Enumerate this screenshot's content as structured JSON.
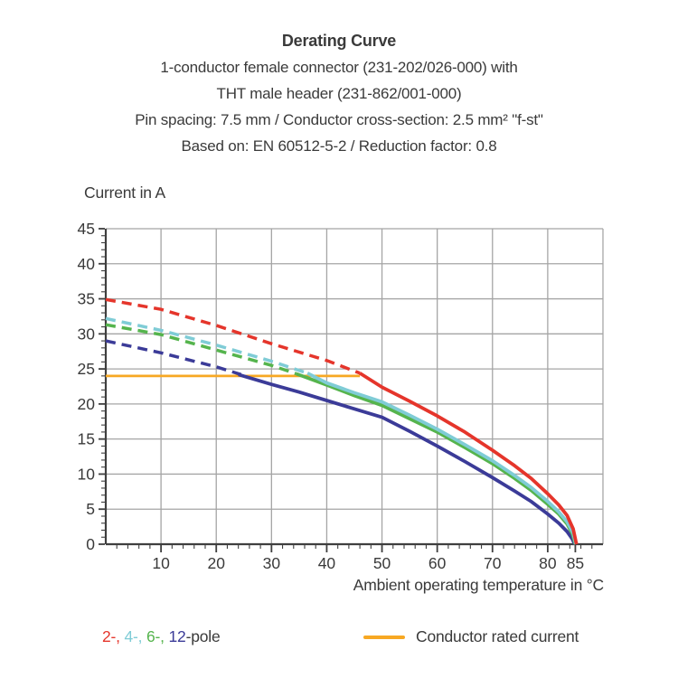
{
  "header": {
    "title": "Derating Curve",
    "subtitle_lines": [
      "1-conductor female connector (231-202/026-000) with",
      "THT male header (231-862/001-000)",
      "Pin spacing: 7.5 mm / Conductor cross-section: 2.5 mm² \"f-st\"",
      "Based on: EN 60512-5-2 / Reduction factor: 0.8"
    ]
  },
  "chart_data": {
    "type": "line",
    "title": "Derating Curve",
    "ylabel": "Current in A",
    "xlabel": "Ambient operating temperature in °C",
    "xlim": [
      0,
      90
    ],
    "ylim": [
      0,
      45
    ],
    "x_major_ticks": [
      10,
      20,
      30,
      40,
      50,
      60,
      70,
      80,
      85
    ],
    "x_gridlines": [
      10,
      20,
      30,
      40,
      50,
      60,
      70,
      80,
      90
    ],
    "y_major_ticks": [
      0,
      5,
      10,
      15,
      20,
      25,
      30,
      35,
      40,
      45
    ],
    "x_minor_step": 2,
    "y_minor_step": 1,
    "grid": true,
    "legend_position": "bottom",
    "colors": {
      "grid": "#a5a5a5",
      "axis": "#3f3f3f",
      "text": "#3a3a3a",
      "pole2": "#e5352b",
      "pole4": "#7fccd6",
      "pole6": "#55b44d",
      "pole12": "#3b3b98",
      "rated": "#f7a823"
    },
    "series": [
      {
        "name": "Conductor rated current",
        "role": "rated",
        "color": "#f7a823",
        "solid": [
          [
            0,
            24
          ],
          [
            46,
            24
          ]
        ]
      },
      {
        "name": "12-pole",
        "role": "pole",
        "color": "#3b3b98",
        "dashed": [
          [
            0,
            29.0
          ],
          [
            10,
            27.3
          ],
          [
            20,
            25.3
          ],
          [
            24.5,
            24.2
          ]
        ],
        "solid": [
          [
            24,
            24.2
          ],
          [
            30,
            22.8
          ],
          [
            35,
            21.7
          ],
          [
            40,
            20.5
          ],
          [
            45,
            19.3
          ],
          [
            50,
            18.1
          ],
          [
            55,
            16.1
          ],
          [
            60,
            14.0
          ],
          [
            65,
            11.8
          ],
          [
            70,
            9.5
          ],
          [
            74,
            7.6
          ],
          [
            77,
            6.1
          ],
          [
            80,
            4.3
          ],
          [
            82,
            3.0
          ],
          [
            83.5,
            1.8
          ],
          [
            84.4,
            0.8
          ],
          [
            84.9,
            0
          ]
        ]
      },
      {
        "name": "6-pole",
        "role": "pole",
        "color": "#55b44d",
        "dashed": [
          [
            0,
            31.3
          ],
          [
            10,
            29.9
          ],
          [
            20,
            27.7
          ],
          [
            30,
            25.5
          ],
          [
            34.5,
            24.3
          ]
        ],
        "solid": [
          [
            34.5,
            24.3
          ],
          [
            40,
            22.7
          ],
          [
            45,
            21.2
          ],
          [
            50,
            19.8
          ],
          [
            55,
            17.9
          ],
          [
            60,
            16.0
          ],
          [
            65,
            13.8
          ],
          [
            70,
            11.5
          ],
          [
            74,
            9.4
          ],
          [
            77,
            7.7
          ],
          [
            80,
            5.7
          ],
          [
            82,
            4.3
          ],
          [
            83.5,
            2.9
          ],
          [
            84.5,
            1.4
          ],
          [
            85.0,
            0
          ]
        ]
      },
      {
        "name": "4-pole",
        "role": "pole",
        "color": "#7fccd6",
        "dashed": [
          [
            0,
            32.2
          ],
          [
            10,
            30.5
          ],
          [
            20,
            28.4
          ],
          [
            30,
            26.1
          ],
          [
            36.5,
            24.4
          ]
        ],
        "solid": [
          [
            36.5,
            24.4
          ],
          [
            40,
            23.0
          ],
          [
            45,
            21.6
          ],
          [
            50,
            20.3
          ],
          [
            55,
            18.4
          ],
          [
            60,
            16.4
          ],
          [
            65,
            14.2
          ],
          [
            70,
            11.9
          ],
          [
            74,
            9.8
          ],
          [
            77,
            8.1
          ],
          [
            80,
            6.1
          ],
          [
            82,
            4.6
          ],
          [
            83.5,
            3.2
          ],
          [
            84.6,
            1.6
          ],
          [
            85.1,
            0
          ]
        ]
      },
      {
        "name": "2-pole",
        "role": "pole",
        "color": "#e5352b",
        "dashed": [
          [
            0,
            34.9
          ],
          [
            10,
            33.5
          ],
          [
            20,
            31.2
          ],
          [
            30,
            28.6
          ],
          [
            40,
            26.2
          ],
          [
            46,
            24.4
          ]
        ],
        "solid": [
          [
            46,
            24.4
          ],
          [
            50,
            22.4
          ],
          [
            55,
            20.4
          ],
          [
            60,
            18.3
          ],
          [
            65,
            16.0
          ],
          [
            70,
            13.4
          ],
          [
            74,
            11.2
          ],
          [
            77,
            9.4
          ],
          [
            80,
            7.2
          ],
          [
            82,
            5.6
          ],
          [
            83.5,
            4.1
          ],
          [
            84.6,
            2.2
          ],
          [
            85.2,
            0
          ]
        ]
      }
    ]
  },
  "legend": {
    "pole_segments": [
      {
        "text": "2-,",
        "color": "#e5352b"
      },
      {
        "text": " 4-,",
        "color": "#7fccd6"
      },
      {
        "text": " 6-,",
        "color": "#55b44d"
      },
      {
        "text": " 12",
        "color": "#3b3b98"
      },
      {
        "text": "-pole",
        "color": "#3a3a3a"
      }
    ],
    "rated_label": "Conductor rated current"
  }
}
